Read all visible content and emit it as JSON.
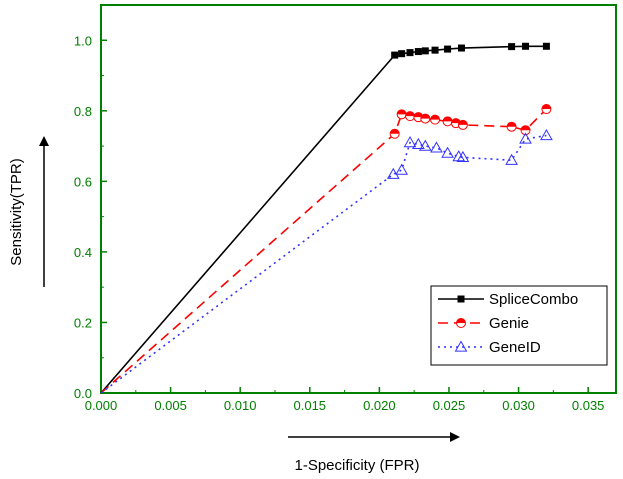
{
  "chart_data": {
    "type": "line",
    "xlabel": "1-Specificity (FPR)",
    "ylabel": "Sensitivity(TPR)",
    "xlim": [
      0,
      0.037
    ],
    "ylim": [
      0,
      1.1
    ],
    "x_ticks": [
      "0.000",
      "0.005",
      "0.010",
      "0.015",
      "0.020",
      "0.025",
      "0.030",
      "0.035"
    ],
    "y_ticks": [
      "0.0",
      "0.2",
      "0.4",
      "0.6",
      "0.8",
      "1.0"
    ],
    "grid": false,
    "legend_position": "bottom-right",
    "axis_color": "#008000",
    "series": [
      {
        "name": "SpliceCombo",
        "color": "#000000",
        "dash": "solid",
        "marker": "square",
        "x": [
          0,
          0.0211,
          0.0216,
          0.0222,
          0.0228,
          0.0233,
          0.024,
          0.0249,
          0.0259,
          0.0295,
          0.0305,
          0.032
        ],
        "y": [
          0,
          0.958,
          0.962,
          0.965,
          0.968,
          0.97,
          0.972,
          0.975,
          0.978,
          0.982,
          0.983,
          0.983
        ]
      },
      {
        "name": "Genie",
        "color": "#ff0000",
        "dash": "dashed",
        "marker": "half-circle",
        "x": [
          0,
          0.0211,
          0.0216,
          0.0222,
          0.0228,
          0.0233,
          0.024,
          0.0249,
          0.0255,
          0.026,
          0.0295,
          0.0305,
          0.032
        ],
        "y": [
          0,
          0.735,
          0.79,
          0.785,
          0.782,
          0.778,
          0.775,
          0.77,
          0.765,
          0.76,
          0.755,
          0.745,
          0.805
        ]
      },
      {
        "name": "GeneID",
        "color": "#3333ff",
        "dash": "dotted",
        "marker": "triangle",
        "x": [
          0,
          0.021,
          0.0216,
          0.0222,
          0.0228,
          0.0233,
          0.0241,
          0.0249,
          0.0257,
          0.026,
          0.0295,
          0.0305,
          0.032
        ],
        "y": [
          0,
          0.62,
          0.632,
          0.71,
          0.705,
          0.7,
          0.695,
          0.68,
          0.67,
          0.668,
          0.66,
          0.72,
          0.73
        ]
      }
    ]
  }
}
